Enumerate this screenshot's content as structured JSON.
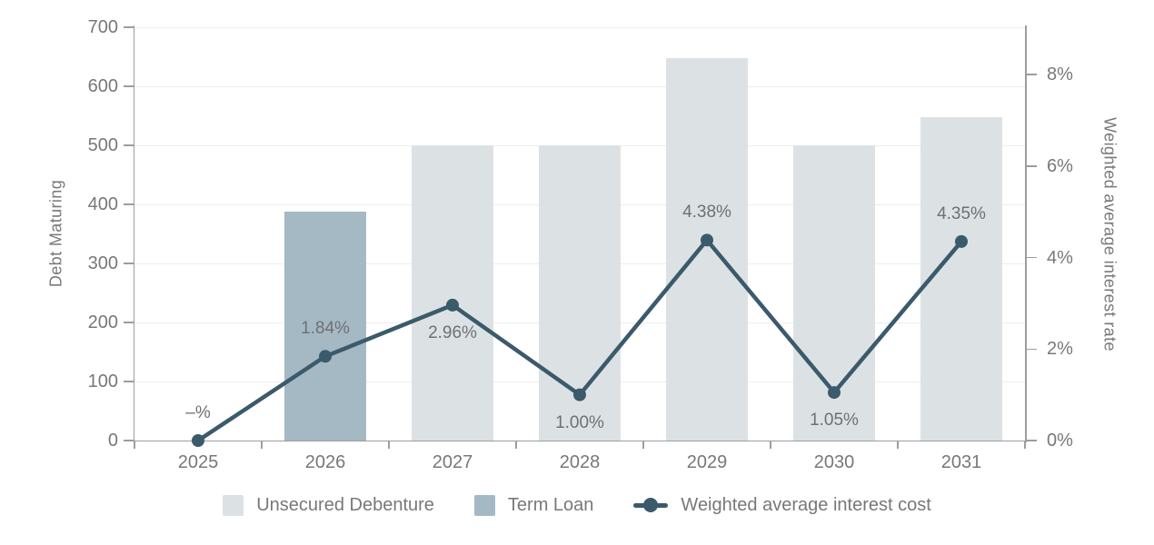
{
  "chart_data": {
    "type": "bar+line",
    "title": "",
    "categories": [
      "2025",
      "2026",
      "2027",
      "2028",
      "2029",
      "2030",
      "2031"
    ],
    "series": [
      {
        "name": "Unsecured Debenture",
        "type": "bar",
        "axis": "left",
        "color": "#dce2e4",
        "values": [
          null,
          null,
          500,
          500,
          648,
          500,
          548
        ]
      },
      {
        "name": "Term Loan",
        "type": "bar",
        "axis": "left",
        "color": "#a5b9c5",
        "values": [
          null,
          387,
          null,
          null,
          null,
          null,
          null
        ]
      },
      {
        "name": "Weighted average interest cost",
        "type": "line",
        "axis": "right",
        "color": "#3b5a6c",
        "values": [
          0,
          1.84,
          2.96,
          1.0,
          4.38,
          1.05,
          4.35
        ],
        "point_labels": [
          "–%",
          "1.84%",
          "2.96%",
          "1.00%",
          "4.38%",
          "1.05%",
          "4.35%"
        ],
        "label_positions": [
          "above",
          "above",
          "below",
          "below",
          "above",
          "below",
          "above"
        ]
      }
    ],
    "left_axis": {
      "title": "Debt Maturing",
      "min": 0,
      "max": 700,
      "step": 100,
      "tick_labels": [
        "0",
        "100",
        "200",
        "300",
        "400",
        "500",
        "600",
        "700"
      ]
    },
    "right_axis": {
      "title": "Weighted average interest rate",
      "min": 0,
      "max": 8,
      "step": 2,
      "tick_labels": [
        "0%",
        "2%",
        "4%",
        "6%",
        "8%"
      ]
    },
    "grid": "horizontal",
    "legend_position": "bottom",
    "background": "#ffffff",
    "text_color": "#77787b",
    "axis_color": "#9c9da0",
    "grid_color": "#ededee"
  }
}
